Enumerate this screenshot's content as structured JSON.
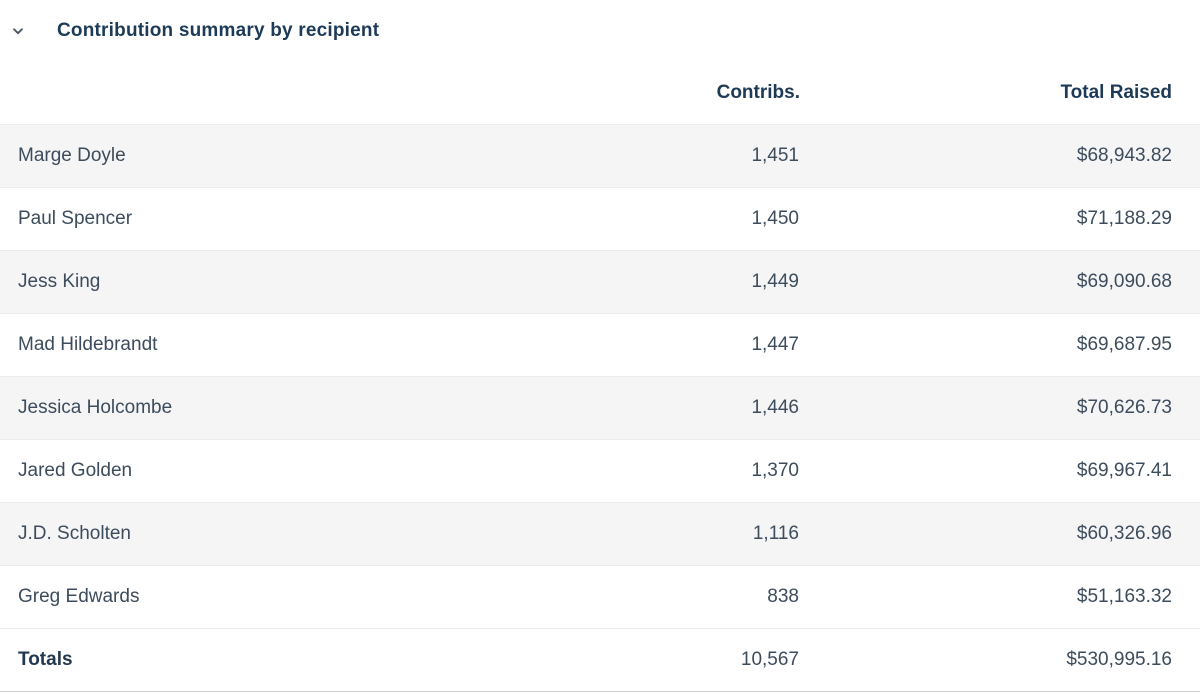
{
  "header": {
    "title": "Contribution summary by recipient",
    "collapse_icon": "chevron-down"
  },
  "table": {
    "columns": [
      {
        "key": "name",
        "label": ""
      },
      {
        "key": "contribs",
        "label": "Contribs."
      },
      {
        "key": "total",
        "label": "Total Raised"
      }
    ],
    "rows": [
      {
        "name": "Marge Doyle",
        "contribs": "1,451",
        "total": "$68,943.82"
      },
      {
        "name": "Paul Spencer",
        "contribs": "1,450",
        "total": "$71,188.29"
      },
      {
        "name": "Jess King",
        "contribs": "1,449",
        "total": "$69,090.68"
      },
      {
        "name": "Mad Hildebrandt",
        "contribs": "1,447",
        "total": "$69,687.95"
      },
      {
        "name": "Jessica Holcombe",
        "contribs": "1,446",
        "total": "$70,626.73"
      },
      {
        "name": "Jared Golden",
        "contribs": "1,370",
        "total": "$69,967.41"
      },
      {
        "name": "J.D. Scholten",
        "contribs": "1,116",
        "total": "$60,326.96"
      },
      {
        "name": "Greg Edwards",
        "contribs": "838",
        "total": "$51,163.32"
      }
    ],
    "totals": {
      "name": "Totals",
      "contribs": "10,567",
      "total": "$530,995.16"
    }
  },
  "colors": {
    "title": "#1d3a57",
    "body_text": "#3d4c5c",
    "stripe": "#f5f5f6",
    "row_border": "#ebebec",
    "footer_border": "#c9cfd4",
    "chevron": "#4a5763"
  }
}
